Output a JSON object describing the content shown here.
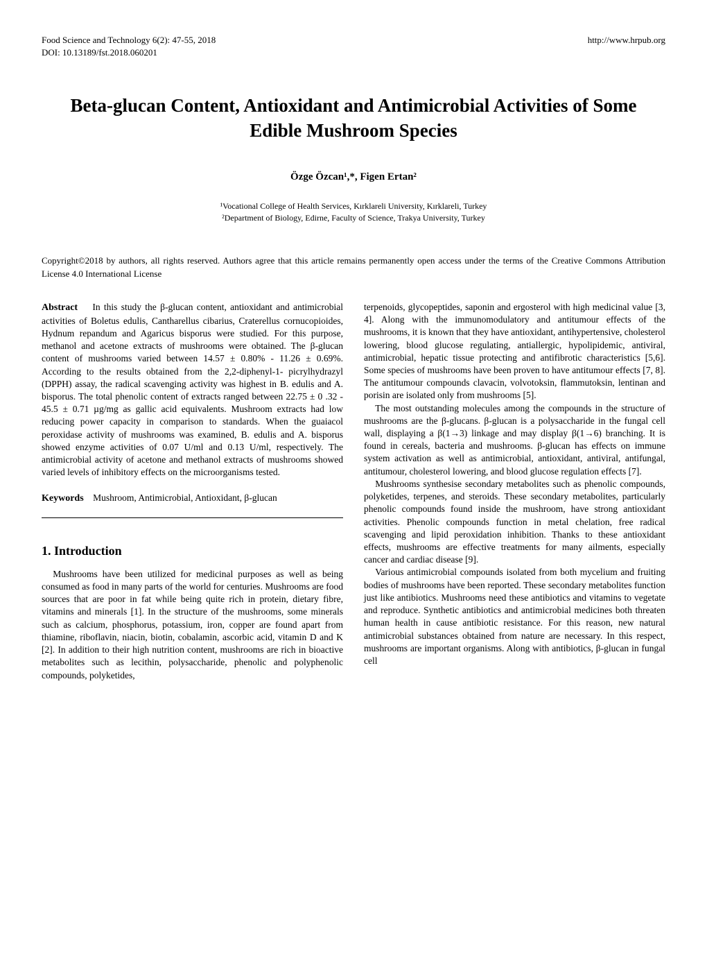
{
  "header": {
    "journal": "Food Science and Technology 6(2): 47-55, 2018",
    "url": "http://www.hrpub.org",
    "doi": "DOI: 10.13189/fst.2018.060201"
  },
  "title": "Beta-glucan Content, Antioxidant and Antimicrobial Activities of Some Edible Mushroom Species",
  "authors": "Özge Özcan¹,*, Figen Ertan²",
  "affiliations": {
    "line1": "¹Vocational College of Health Services, Kırklareli University, Kırklareli, Turkey",
    "line2": "²Department of Biology, Edirne, Faculty of Science, Trakya University, Turkey"
  },
  "copyright": "Copyright©2018 by authors, all rights reserved. Authors agree that this article remains permanently open access under the terms of the Creative Commons Attribution License 4.0 International License",
  "abstract": {
    "label": "Abstract",
    "text": "In this study the β-glucan content, antioxidant and antimicrobial activities of Boletus edulis, Cantharellus cibarius, Craterellus cornucopioides, Hydnum repandum and Agaricus bisporus were studied. For this purpose, methanol and acetone extracts of mushrooms were obtained. The β-glucan content of mushrooms varied between 14.57 ± 0.80% - 11.26 ± 0.69%. According to the results obtained from the 2,2-diphenyl-1- picrylhydrazyl (DPPH) assay, the radical scavenging activity was highest in B. edulis and A. bisporus. The total phenolic content of extracts ranged between 22.75 ± 0 .32 - 45.5 ± 0.71 µg/mg as gallic acid equivalents. Mushroom extracts had low reducing power capacity in comparison to standards. When the guaiacol peroxidase activity of mushrooms was examined, B. edulis and A. bisporus showed enzyme activities of 0.07 U/ml and 0.13 U/ml, respectively. The antimicrobial activity of acetone and methanol extracts of mushrooms showed varied levels of inhibitory effects on the microorganisms tested."
  },
  "keywords": {
    "label": "Keywords",
    "text": "Mushroom, Antimicrobial, Antioxidant, β-glucan"
  },
  "intro": {
    "heading": "1. Introduction",
    "p1": "Mushrooms have been utilized for medicinal purposes as well as being consumed as food in many parts of the world for centuries. Mushrooms are food sources that are poor in fat while being quite rich in protein, dietary fibre, vitamins and minerals [1]. In the structure of the mushrooms, some minerals such as calcium, phosphorus, potassium, iron, copper are found apart from thiamine, riboflavin, niacin, biotin, cobalamin, ascorbic acid, vitamin D and K [2]. In addition to their high nutrition content, mushrooms are rich in bioactive metabolites such as lecithin, polysaccharide, phenolic and polyphenolic compounds, polyketides,"
  },
  "col2": {
    "p1": "terpenoids, glycopeptides, saponin and ergosterol with high medicinal value [3, 4]. Along with the immunomodulatory and antitumour effects of the mushrooms, it is known that they have antioxidant, antihypertensive, cholesterol lowering, blood glucose regulating, antiallergic, hypolipidemic, antiviral, antimicrobial, hepatic tissue protecting and antifibrotic characteristics [5,6]. Some species of mushrooms have been proven to have antitumour effects [7, 8]. The antitumour compounds clavacin, volvotoksin, flammutoksin, lentinan and porisin are isolated only from mushrooms [5].",
    "p2": "The most outstanding molecules among the compounds in the structure of mushrooms are the β-glucans. β-glucan is a polysaccharide in the fungal cell wall, displaying a β(1→3) linkage and may display β(1→6) branching. It is found in cereals, bacteria and mushrooms. β-glucan has effects on immune system activation as well as antimicrobial, antioxidant, antiviral, antifungal, antitumour, cholesterol lowering, and blood glucose regulation effects [7].",
    "p3": "Mushrooms synthesise secondary metabolites such as phenolic compounds, polyketides, terpenes, and steroids. These secondary metabolites, particularly phenolic compounds found inside the mushroom, have strong antioxidant activities. Phenolic compounds function in metal chelation, free radical scavenging and lipid peroxidation inhibition. Thanks to these antioxidant effects, mushrooms are effective treatments for many ailments, especially cancer and cardiac disease [9].",
    "p4": "Various antimicrobial compounds isolated from both mycelium and fruiting bodies of mushrooms have been reported. These secondary metabolites function just like antibiotics. Mushrooms need these antibiotics and vitamins to vegetate and reproduce. Synthetic antibiotics and antimicrobial medicines both threaten human health in cause antibiotic resistance. For this reason, new natural antimicrobial substances obtained from nature are necessary. In this respect, mushrooms are important organisms. Along with antibiotics, β-glucan in fungal cell"
  }
}
